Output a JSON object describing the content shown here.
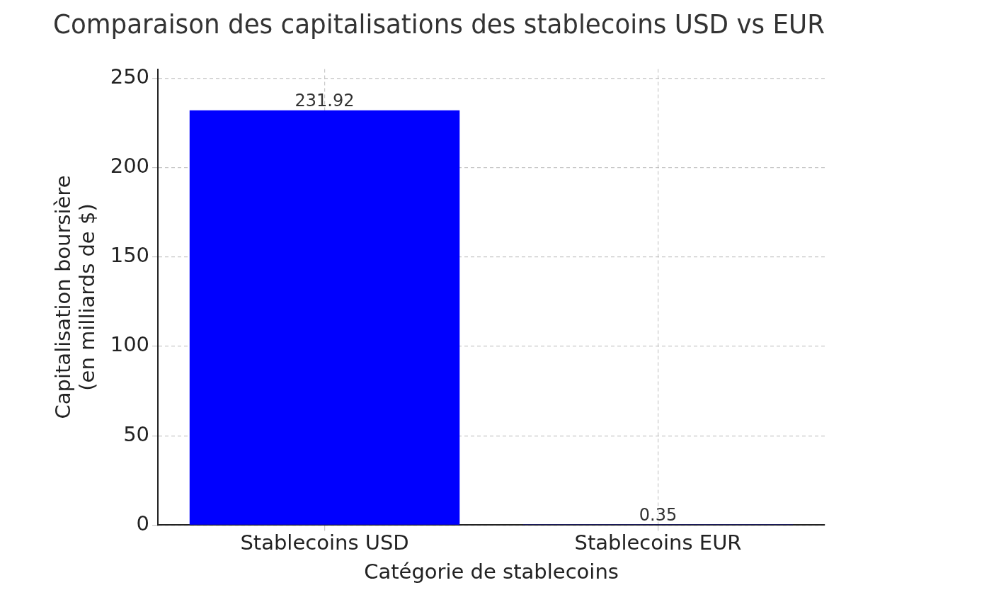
{
  "chart_data": {
    "type": "bar",
    "title": "Comparaison des capitalisations des stablecoins USD vs EUR",
    "x_label": "Catégorie de stablecoins",
    "y_label": "Capitalisation boursière\n(en milliards de $)",
    "categories": [
      "Stablecoins USD",
      "Stablecoins EUR"
    ],
    "values": [
      231.92,
      0.35
    ],
    "color": "#0000ff",
    "ylim": [
      0,
      255
    ],
    "yticks": [
      0,
      50,
      100,
      150,
      200,
      250
    ],
    "grid": true,
    "data_labels": true
  }
}
